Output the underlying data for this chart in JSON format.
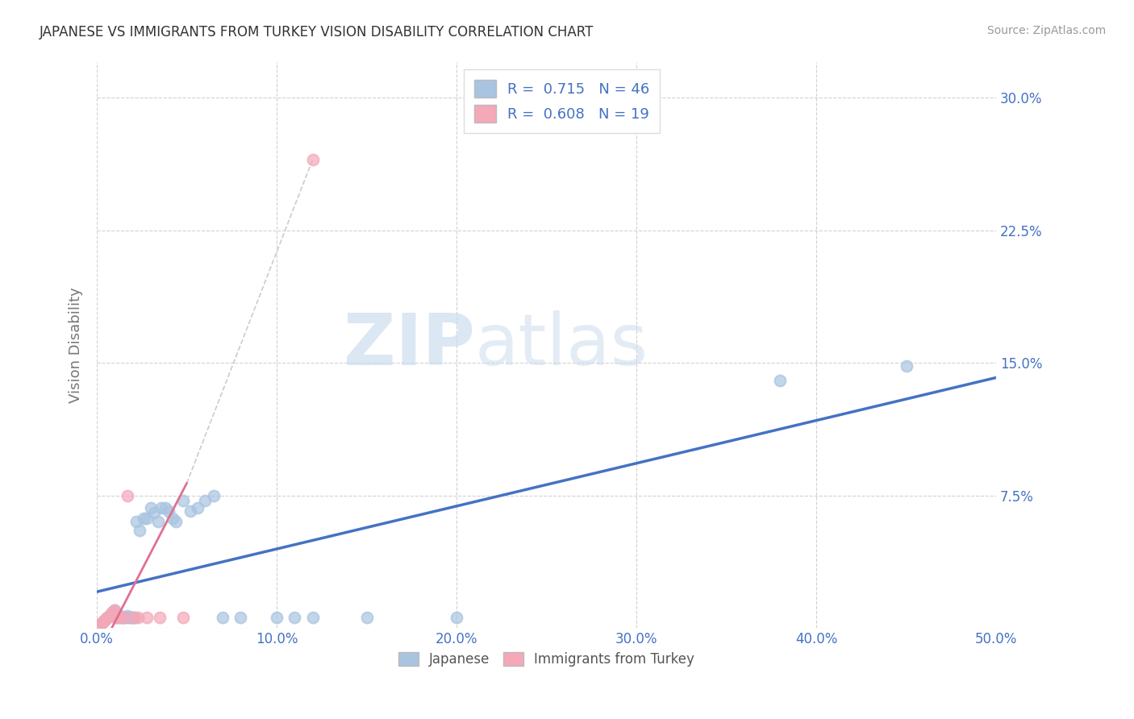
{
  "title": "JAPANESE VS IMMIGRANTS FROM TURKEY VISION DISABILITY CORRELATION CHART",
  "source": "Source: ZipAtlas.com",
  "ylabel": "Vision Disability",
  "xlim": [
    0.0,
    0.5
  ],
  "ylim": [
    0.0,
    0.32
  ],
  "xticks": [
    0.0,
    0.1,
    0.2,
    0.3,
    0.4,
    0.5
  ],
  "xticklabels": [
    "0.0%",
    "10.0%",
    "20.0%",
    "30.0%",
    "40.0%",
    "50.0%"
  ],
  "yticks": [
    0.0,
    0.075,
    0.15,
    0.225,
    0.3
  ],
  "yticklabels_right": [
    "",
    "7.5%",
    "15.0%",
    "22.5%",
    "30.0%"
  ],
  "grid_color": "#cccccc",
  "background_color": "#ffffff",
  "japanese_color": "#a8c4e0",
  "turkey_color": "#f4a8b8",
  "japanese_line_color": "#4472c4",
  "turkey_line_color": "#e07090",
  "japanese_scatter": [
    [
      0.002,
      0.002
    ],
    [
      0.003,
      0.003
    ],
    [
      0.004,
      0.004
    ],
    [
      0.005,
      0.005
    ],
    [
      0.006,
      0.006
    ],
    [
      0.007,
      0.007
    ],
    [
      0.008,
      0.008
    ],
    [
      0.009,
      0.009
    ],
    [
      0.01,
      0.01
    ],
    [
      0.011,
      0.006
    ],
    [
      0.012,
      0.006
    ],
    [
      0.013,
      0.007
    ],
    [
      0.014,
      0.006
    ],
    [
      0.015,
      0.006
    ],
    [
      0.016,
      0.006
    ],
    [
      0.017,
      0.007
    ],
    [
      0.018,
      0.006
    ],
    [
      0.019,
      0.006
    ],
    [
      0.02,
      0.006
    ],
    [
      0.021,
      0.006
    ],
    [
      0.022,
      0.06
    ],
    [
      0.024,
      0.055
    ],
    [
      0.026,
      0.062
    ],
    [
      0.028,
      0.062
    ],
    [
      0.03,
      0.068
    ],
    [
      0.032,
      0.065
    ],
    [
      0.034,
      0.06
    ],
    [
      0.036,
      0.068
    ],
    [
      0.038,
      0.068
    ],
    [
      0.04,
      0.066
    ],
    [
      0.042,
      0.062
    ],
    [
      0.044,
      0.06
    ],
    [
      0.048,
      0.072
    ],
    [
      0.052,
      0.066
    ],
    [
      0.056,
      0.068
    ],
    [
      0.06,
      0.072
    ],
    [
      0.065,
      0.075
    ],
    [
      0.07,
      0.006
    ],
    [
      0.08,
      0.006
    ],
    [
      0.1,
      0.006
    ],
    [
      0.11,
      0.006
    ],
    [
      0.12,
      0.006
    ],
    [
      0.15,
      0.006
    ],
    [
      0.2,
      0.006
    ],
    [
      0.38,
      0.14
    ],
    [
      0.45,
      0.148
    ]
  ],
  "turkey_scatter": [
    [
      0.002,
      0.002
    ],
    [
      0.003,
      0.003
    ],
    [
      0.004,
      0.004
    ],
    [
      0.005,
      0.005
    ],
    [
      0.006,
      0.006
    ],
    [
      0.007,
      0.007
    ],
    [
      0.008,
      0.008
    ],
    [
      0.009,
      0.009
    ],
    [
      0.01,
      0.01
    ],
    [
      0.011,
      0.006
    ],
    [
      0.013,
      0.006
    ],
    [
      0.015,
      0.006
    ],
    [
      0.017,
      0.075
    ],
    [
      0.02,
      0.006
    ],
    [
      0.023,
      0.006
    ],
    [
      0.028,
      0.006
    ],
    [
      0.035,
      0.006
    ],
    [
      0.048,
      0.006
    ],
    [
      0.12,
      0.265
    ]
  ],
  "R_japanese": 0.715,
  "N_japanese": 46,
  "R_turkey": 0.608,
  "N_turkey": 19,
  "legend_labels": [
    "Japanese",
    "Immigrants from Turkey"
  ]
}
